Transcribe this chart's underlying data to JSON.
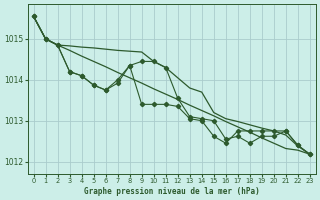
{
  "xlabel": "Graphe pression niveau de la mer (hPa)",
  "bg_color": "#cceee8",
  "grid_color": "#aacccc",
  "line_color": "#2d5a2d",
  "text_color": "#2d5a2d",
  "hours": [
    0,
    1,
    2,
    3,
    4,
    5,
    6,
    7,
    8,
    9,
    10,
    11,
    12,
    13,
    14,
    15,
    16,
    17,
    18,
    19,
    20,
    21,
    22,
    23
  ],
  "smooth1": [
    1015.55,
    1015.0,
    1014.85,
    1014.72,
    1014.58,
    1014.45,
    1014.32,
    1014.18,
    1014.05,
    1013.92,
    1013.78,
    1013.65,
    1013.52,
    1013.38,
    1013.25,
    1013.12,
    1012.98,
    1012.85,
    1012.72,
    1012.58,
    1012.45,
    1012.32,
    1012.28,
    1012.18
  ],
  "smooth2": [
    1015.55,
    1015.0,
    1014.85,
    1014.83,
    1014.8,
    1014.78,
    1014.75,
    1014.72,
    1014.7,
    1014.68,
    1014.45,
    1014.3,
    1014.05,
    1013.8,
    1013.7,
    1013.2,
    1013.05,
    1012.98,
    1012.9,
    1012.82,
    1012.75,
    1012.65,
    1012.38,
    1012.18
  ],
  "zigzag1": [
    1015.55,
    1015.0,
    1014.85,
    1014.2,
    1014.1,
    1013.87,
    1013.75,
    1013.92,
    1014.35,
    1014.45,
    1014.45,
    1014.3,
    1013.55,
    1013.1,
    1013.05,
    1013.0,
    1012.55,
    1012.62,
    1012.45,
    1012.62,
    1012.62,
    1012.75,
    1012.4,
    1012.18
  ],
  "zigzag2": [
    1015.55,
    1015.0,
    1014.85,
    1014.2,
    1014.1,
    1013.87,
    1013.75,
    1014.0,
    1014.35,
    1013.4,
    1013.4,
    1013.4,
    1013.35,
    1013.05,
    1013.0,
    1012.62,
    1012.45,
    1012.75,
    1012.75,
    1012.75,
    1012.75,
    1012.75,
    1012.4,
    1012.18
  ],
  "ylim": [
    1011.7,
    1015.85
  ],
  "yticks": [
    1012,
    1013,
    1014,
    1015
  ],
  "xlim": [
    -0.5,
    23.5
  ]
}
